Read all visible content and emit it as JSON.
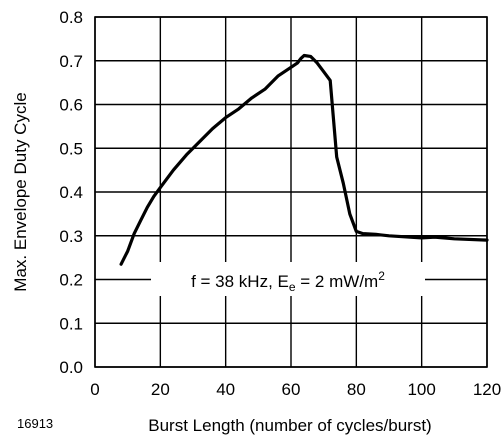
{
  "figure_id": "16913",
  "chart_data": {
    "type": "line",
    "xlabel": "Burst Length (number of cycles/burst)",
    "ylabel": "Max. Envelope Duty Cycle",
    "xlim": [
      0,
      120
    ],
    "ylim": [
      0,
      0.8
    ],
    "xticks": [
      0,
      20,
      40,
      60,
      80,
      100,
      120
    ],
    "yticks": [
      0.0,
      0.1,
      0.2,
      0.3,
      0.4,
      0.5,
      0.6,
      0.7,
      0.8
    ],
    "xtick_labels": [
      "0",
      "20",
      "40",
      "60",
      "80",
      "100",
      "120"
    ],
    "ytick_labels": [
      "0.0",
      "0.1",
      "0.2",
      "0.3",
      "0.4",
      "0.5",
      "0.6",
      "0.7",
      "0.8"
    ],
    "grid": true,
    "annotation": {
      "prefix": "f = 38 kHz, E",
      "subscript": "e",
      "middle": " = 2 mW/m",
      "superscript": "2"
    },
    "series": [
      {
        "color": "#000000",
        "x": [
          8,
          10,
          12,
          14,
          16,
          18,
          20,
          24,
          28,
          32,
          36,
          40,
          44,
          48,
          52,
          56,
          60,
          62,
          63,
          64,
          66,
          68,
          70,
          72,
          74,
          76,
          78,
          80,
          82,
          86,
          90,
          100,
          104,
          110,
          120
        ],
        "y": [
          0.235,
          0.265,
          0.305,
          0.335,
          0.365,
          0.39,
          0.41,
          0.45,
          0.485,
          0.515,
          0.545,
          0.57,
          0.59,
          0.615,
          0.635,
          0.665,
          0.685,
          0.695,
          0.705,
          0.712,
          0.71,
          0.695,
          0.675,
          0.655,
          0.48,
          0.42,
          0.35,
          0.31,
          0.305,
          0.303,
          0.3,
          0.295,
          0.297,
          0.293,
          0.29
        ]
      }
    ]
  }
}
